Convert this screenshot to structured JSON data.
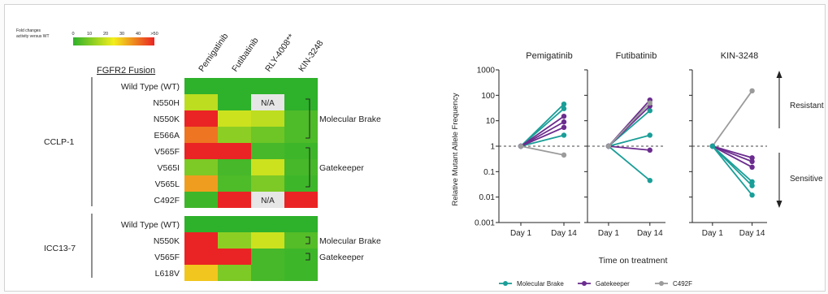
{
  "chart_data": [
    {
      "type": "heatmap",
      "colorbar": {
        "label_lines": [
          "Fold changes",
          "activity versus WT"
        ],
        "ticks": [
          "0",
          "10",
          "20",
          "30",
          "40",
          ">50"
        ],
        "colors": [
          "#2eb12b",
          "#f3ee1c",
          "#ea2424"
        ]
      },
      "row_header": "FGFR2 Fusion",
      "columns": [
        "Pemigatinib",
        "Futibatinib",
        "RLY-4008**",
        "KIN-3248"
      ],
      "na_label": "N/A",
      "na_color": "#e6e6e6",
      "panels": [
        {
          "cell_line": "CCLP-1",
          "rows": [
            "Wild Type (WT)",
            "N550H",
            "N550K",
            "E566A",
            "V565F",
            "V565I",
            "V565L",
            "C492F"
          ],
          "values": [
            [
              0,
              0,
              0,
              0
            ],
            [
              18,
              0,
              null,
              0
            ],
            [
              50,
              20,
              18,
              4
            ],
            [
              40,
              12,
              8,
              4
            ],
            [
              50,
              50,
              3,
              2
            ],
            [
              10,
              3,
              20,
              3
            ],
            [
              35,
              4,
              10,
              2
            ],
            [
              2,
              50,
              null,
              50
            ]
          ]
        },
        {
          "cell_line": "ICC13-7",
          "rows": [
            "Wild Type (WT)",
            "N550K",
            "V565F",
            "L618V"
          ],
          "values": [
            [
              0,
              0,
              0,
              0
            ],
            [
              50,
              12,
              20,
              5
            ],
            [
              50,
              50,
              3,
              2
            ],
            [
              30,
              10,
              3,
              2
            ]
          ]
        }
      ],
      "brackets": [
        {
          "label": "Molecular Brake",
          "panel": 0,
          "from_row": 1,
          "to_row": 4
        },
        {
          "label": "Gatekeeper",
          "panel": 0,
          "from_row": 4,
          "to_row": 7
        },
        {
          "label": "Molecular Brake",
          "panel": 1,
          "from_row": 1,
          "to_row": 2
        },
        {
          "label": "Gatekeeper",
          "panel": 1,
          "from_row": 2,
          "to_row": 3
        }
      ]
    },
    {
      "type": "line",
      "ylabel": "Relative Mutant Allele Frequency",
      "xlabel": "Time on treatment",
      "yscale": "log",
      "ylim": [
        0.001,
        1000
      ],
      "yticks": [
        "0.001",
        "0.01",
        "0.1",
        "1",
        "10",
        "100",
        "1000"
      ],
      "categories": [
        "Day 1",
        "Day 14"
      ],
      "reference_line": 1,
      "legend_position": "bottom",
      "groups": [
        {
          "name": "Molecular Brake",
          "color": "#1a9e98"
        },
        {
          "name": "Gatekeeper",
          "color": "#6b2c8f"
        },
        {
          "name": "C492F",
          "color": "#9b9b9b"
        }
      ],
      "annotations": {
        "upper": "Resistant",
        "lower": "Sensitive"
      },
      "panels": [
        {
          "title": "Pemigatinib",
          "series": [
            {
              "group": "Molecular Brake",
              "values": [
                1,
                45
              ]
            },
            {
              "group": "Molecular Brake",
              "values": [
                1,
                30
              ]
            },
            {
              "group": "Molecular Brake",
              "values": [
                1,
                2.7
              ]
            },
            {
              "group": "Gatekeeper",
              "values": [
                1,
                15
              ]
            },
            {
              "group": "Gatekeeper",
              "values": [
                1,
                9
              ]
            },
            {
              "group": "Gatekeeper",
              "values": [
                1,
                5.5
              ]
            },
            {
              "group": "C492F",
              "values": [
                1,
                0.45
              ]
            }
          ]
        },
        {
          "title": "Futibatinib",
          "series": [
            {
              "group": "Molecular Brake",
              "values": [
                1,
                25
              ]
            },
            {
              "group": "Molecular Brake",
              "values": [
                1,
                2.7
              ]
            },
            {
              "group": "Molecular Brake",
              "values": [
                1,
                0.045
              ]
            },
            {
              "group": "Gatekeeper",
              "values": [
                1,
                65
              ]
            },
            {
              "group": "Gatekeeper",
              "values": [
                1,
                38
              ]
            },
            {
              "group": "Gatekeeper",
              "values": [
                1,
                0.7
              ]
            },
            {
              "group": "C492F",
              "values": [
                1,
                50
              ]
            }
          ]
        },
        {
          "title": "KIN-3248",
          "series": [
            {
              "group": "C492F",
              "values": [
                1,
                150
              ]
            },
            {
              "group": "Gatekeeper",
              "values": [
                1,
                0.35
              ]
            },
            {
              "group": "Gatekeeper",
              "values": [
                1,
                0.25
              ]
            },
            {
              "group": "Gatekeeper",
              "values": [
                1,
                0.15
              ]
            },
            {
              "group": "Molecular Brake",
              "values": [
                1,
                0.04
              ]
            },
            {
              "group": "Molecular Brake",
              "values": [
                1,
                0.028
              ]
            },
            {
              "group": "Molecular Brake",
              "values": [
                1,
                0.012
              ]
            }
          ]
        }
      ]
    }
  ]
}
